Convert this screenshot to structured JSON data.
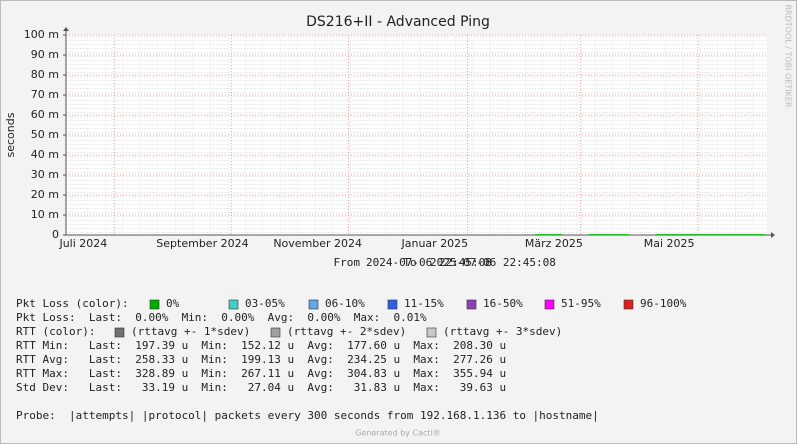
{
  "chart_data": {
    "type": "line",
    "title": "DS216+II - Advanced Ping",
    "y_label": "seconds",
    "watermark": "RRDTOOL / TOBI OETIKER",
    "range_words": [
      "From",
      "To"
    ],
    "xlim": [
      "2024-07-06 22:45:08",
      "2025-07-06 22:45:08"
    ],
    "xticks": [
      {
        "value": "2024-07-16",
        "label": "Juli 2024"
      },
      {
        "value": "2024-09-16",
        "label": "September 2024"
      },
      {
        "value": "2024-11-15",
        "label": "November 2024"
      },
      {
        "value": "2025-01-15",
        "label": "Januar 2025"
      },
      {
        "value": "2025-03-18",
        "label": "März 2025"
      },
      {
        "value": "2025-05-17",
        "label": "Mai 2025"
      }
    ],
    "x_major_grid": [
      "2024-08-01",
      "2024-10-01",
      "2024-12-01",
      "2025-02-01",
      "2025-04-01",
      "2025-06-01"
    ],
    "ylim": [
      0,
      0.1
    ],
    "yticks": [
      0,
      {
        "value": 0.01,
        "label": "10 m"
      },
      {
        "value": 0.02,
        "label": "20 m"
      },
      {
        "value": 0.03,
        "label": "30 m"
      },
      {
        "value": 0.04,
        "label": "40 m"
      },
      {
        "value": 0.05,
        "label": "50 m"
      },
      {
        "value": 0.06,
        "label": "60 m"
      },
      {
        "value": 0.07,
        "label": "70 m"
      },
      {
        "value": 0.08,
        "label": "80 m"
      },
      {
        "value": 0.09,
        "label": "90 m"
      },
      {
        "value": 0.1,
        "label": "100 m"
      }
    ],
    "grid": true,
    "series": [
      {
        "name": "0%",
        "color": "#00b000",
        "x": [
          "2025-03-08",
          "2025-03-15",
          "2025-03-22",
          "2025-03-29",
          "2025-04-05",
          "2025-04-12",
          "2025-04-19",
          "2025-04-26",
          "2025-05-03",
          "2025-05-10",
          "2025-05-17",
          "2025-05-24",
          "2025-05-31",
          "2025-06-07",
          "2025-06-14",
          "2025-06-21",
          "2025-06-28",
          "2025-07-06"
        ],
        "values": [
          0.00018,
          0.00017,
          0.00018,
          null,
          0.00018,
          0.00017,
          0.00018,
          0.00018,
          null,
          0.00018,
          0.00017,
          0.00018,
          0.00018,
          0.00018,
          0.00017,
          0.00018,
          0.00018,
          0.00018
        ]
      }
    ],
    "loss_legend": {
      "label": "Pkt Loss (color):",
      "items": [
        {
          "name": "0%",
          "color": "#00b000"
        },
        {
          "name": "03-05%",
          "color": "#40d0c8"
        },
        {
          "name": "06-10%",
          "color": "#60a8e8"
        },
        {
          "name": "11-15%",
          "color": "#3060e0"
        },
        {
          "name": "16-50%",
          "color": "#9040b0"
        },
        {
          "name": "51-95%",
          "color": "#ff00ff"
        },
        {
          "name": "96-100%",
          "color": "#e02020"
        }
      ]
    },
    "rtt_legend": {
      "label": "RTT (color):",
      "items": [
        {
          "name": "(rttavg +- 1*sdev)",
          "color": "#707070"
        },
        {
          "name": "(rttavg +- 2*sdev)",
          "color": "#a0a0a0"
        },
        {
          "name": "(rttavg +- 3*sdev)",
          "color": "#c8c8c8"
        }
      ]
    },
    "stats": [
      "Pkt Loss:  Last:  0.00%  Min:  0.00%  Avg:  0.00%  Max:  0.01%",
      "RTT Min:   Last:  197.39 u  Min:  152.12 u  Avg:  177.60 u  Max:  208.30 u",
      "RTT Avg:   Last:  258.33 u  Min:  199.13 u  Avg:  234.25 u  Max:  277.26 u",
      "RTT Max:   Last:  328.89 u  Min:  267.11 u  Avg:  304.83 u  Max:  355.94 u",
      "Std Dev:   Last:   33.19 u  Min:   27.04 u  Avg:   31.83 u  Max:   39.63 u"
    ],
    "probe": "Probe:  |attempts| |protocol| packets every 300 seconds from 192.168.1.136 to |hostname|",
    "footer": "Generated by Cacti®"
  }
}
